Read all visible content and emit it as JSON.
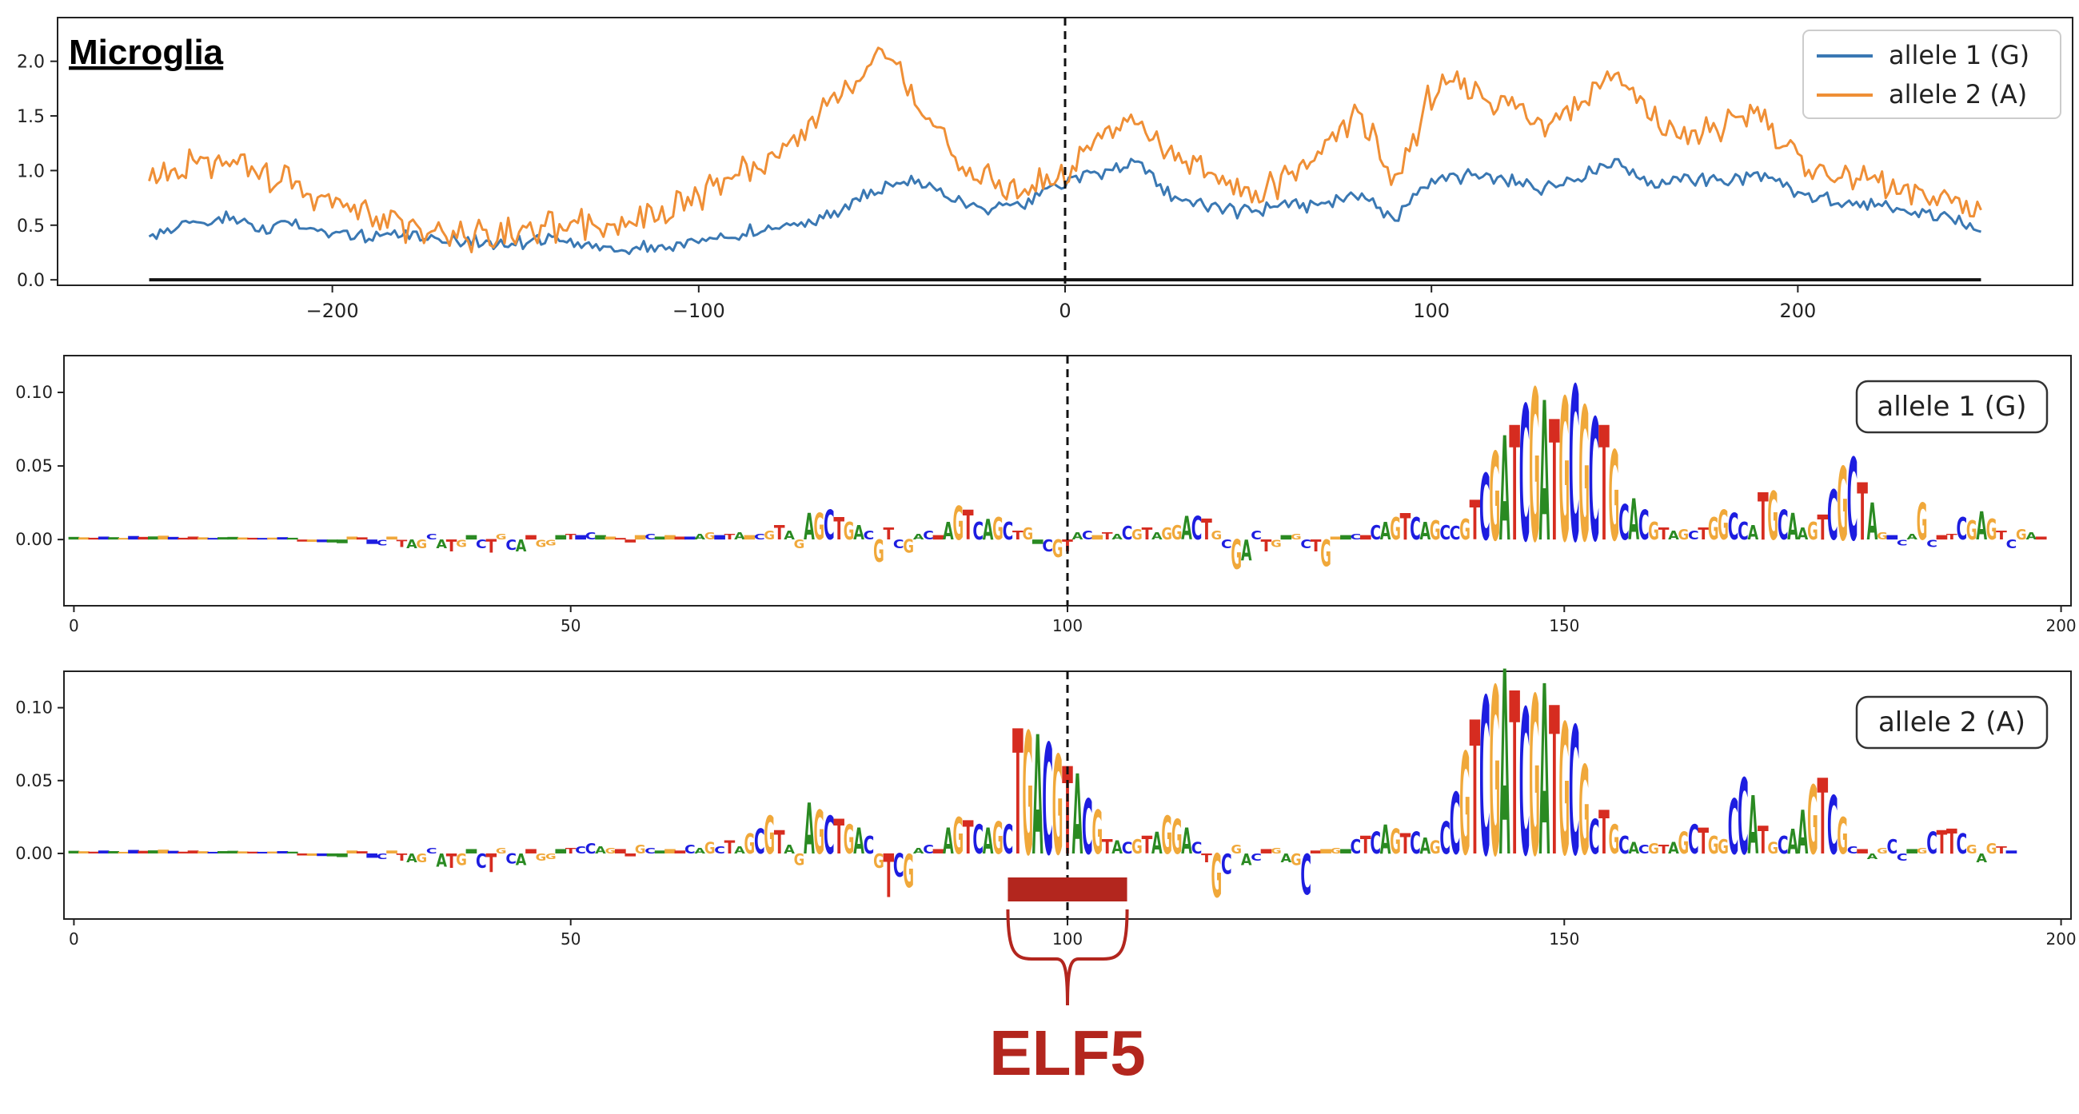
{
  "colors": {
    "allele1": "#3a78b3",
    "allele2": "#ef8f36",
    "A": "#2a8a22",
    "C": "#1d1de0",
    "G": "#f0a83a",
    "T": "#d62c20",
    "annotation": "#b3261e"
  },
  "panel_title": "Microglia",
  "annotation": {
    "label": "ELF5",
    "x_start": 94,
    "x_end": 106
  },
  "chart_data": [
    {
      "id": "profile",
      "type": "line",
      "title": "Microglia",
      "xlabel": "",
      "ylabel": "",
      "xlim": [
        -275,
        275
      ],
      "ylim": [
        -0.05,
        2.4
      ],
      "xticks": [
        -200,
        -100,
        0,
        100,
        200
      ],
      "xtick_labels": [
        "−200",
        "−100",
        "0",
        "100",
        "200"
      ],
      "yticks": [
        0.0,
        0.5,
        1.0,
        1.5,
        2.0
      ],
      "ytick_labels": [
        "0.0",
        "0.5",
        "1.0",
        "1.5",
        "2.0"
      ],
      "grid": false,
      "legend_position": "top-right",
      "baseline": 0,
      "vline": 0,
      "series": [
        {
          "name": "allele 1 (G)",
          "color": "#3a78b3",
          "x": [
            -250,
            -240,
            -230,
            -220,
            -210,
            -200,
            -190,
            -180,
            -170,
            -160,
            -150,
            -140,
            -130,
            -120,
            -110,
            -100,
            -90,
            -80,
            -70,
            -60,
            -50,
            -40,
            -30,
            -20,
            -10,
            0,
            10,
            20,
            30,
            40,
            50,
            60,
            70,
            80,
            90,
            100,
            110,
            120,
            130,
            140,
            150,
            160,
            170,
            180,
            190,
            200,
            210,
            220,
            230,
            240,
            250
          ],
          "y": [
            0.4,
            0.52,
            0.56,
            0.48,
            0.5,
            0.45,
            0.4,
            0.42,
            0.36,
            0.35,
            0.34,
            0.36,
            0.32,
            0.27,
            0.3,
            0.36,
            0.42,
            0.46,
            0.52,
            0.65,
            0.85,
            0.9,
            0.75,
            0.65,
            0.7,
            0.9,
            1.0,
            1.05,
            0.75,
            0.65,
            0.62,
            0.7,
            0.68,
            0.8,
            0.55,
            0.92,
            0.95,
            0.9,
            0.85,
            0.95,
            1.1,
            0.88,
            0.92,
            0.9,
            0.95,
            0.78,
            0.72,
            0.68,
            0.62,
            0.58,
            0.45
          ]
        },
        {
          "name": "allele 2 (A)",
          "color": "#ef8f36",
          "x": [
            -250,
            -240,
            -230,
            -220,
            -210,
            -200,
            -190,
            -180,
            -170,
            -160,
            -150,
            -140,
            -130,
            -120,
            -110,
            -100,
            -90,
            -80,
            -70,
            -60,
            -50,
            -40,
            -30,
            -20,
            -10,
            0,
            10,
            20,
            30,
            40,
            50,
            60,
            70,
            80,
            90,
            100,
            110,
            120,
            130,
            140,
            150,
            160,
            170,
            180,
            190,
            200,
            210,
            220,
            230,
            240,
            250
          ],
          "y": [
            0.9,
            1.05,
            1.1,
            1.0,
            0.85,
            0.7,
            0.58,
            0.5,
            0.42,
            0.4,
            0.44,
            0.48,
            0.52,
            0.5,
            0.6,
            0.75,
            0.92,
            1.1,
            1.4,
            1.75,
            2.1,
            1.6,
            1.1,
            0.9,
            0.85,
            1.0,
            1.3,
            1.45,
            1.15,
            0.95,
            0.75,
            0.9,
            1.15,
            1.55,
            0.85,
            1.7,
            1.8,
            1.6,
            1.45,
            1.6,
            1.9,
            1.45,
            1.3,
            1.4,
            1.55,
            1.1,
            0.95,
            0.9,
            0.8,
            0.75,
            0.65
          ]
        }
      ]
    },
    {
      "id": "logo1",
      "type": "bar",
      "label": "allele 1 (G)",
      "xlim": [
        -1,
        201
      ],
      "ylim": [
        -0.045,
        0.125
      ],
      "xticks": [
        0,
        50,
        100,
        150,
        200
      ],
      "xtick_labels": [
        "0",
        "50",
        "100",
        "150",
        "200"
      ],
      "yticks": [
        0.0,
        0.05,
        0.1
      ],
      "ytick_labels": [
        "0.00",
        "0.05",
        "0.10"
      ],
      "vline": 100,
      "bases": "AGTCAGCTAGCTTGCAAGTCGCATGCAAGTCCGTAGCATGACTGCATGGATCCAGTTGCAGTCAGCTAGCGTAGAGCTGACGTCGACTAGTCAGCTGACGTACGTACGTAGGACTGCGACTGAGCTGGACTCAGTCAGCCGTCGATCGATGCGCTGCACGTAGCTGGCCATGCAAGTCGCTAGCCAGCTTCGAGTCGATCGA",
      "values": [
        0.0018,
        0.0015,
        0.0012,
        0.002,
        0.0016,
        0.001,
        0.0024,
        0.0018,
        0.0021,
        0.0026,
        0.0018,
        0.0012,
        0.002,
        0.0015,
        0.001,
        0.0016,
        0.0018,
        0.0014,
        0.0012,
        0.001,
        0.0013,
        0.0016,
        0.0012,
        -0.0014,
        -0.0016,
        -0.0018,
        -0.002,
        -0.0025,
        0.002,
        0.0015,
        -0.003,
        -0.004,
        0.002,
        -0.005,
        -0.006,
        -0.006,
        0.004,
        -0.006,
        -0.008,
        -0.005,
        0.003,
        -0.006,
        -0.009,
        0.004,
        -0.007,
        -0.008,
        0.003,
        -0.005,
        -0.004,
        0.003,
        0.004,
        0.003,
        0.005,
        0.003,
        0.002,
        0.001,
        -0.002,
        0.003,
        0.004,
        0.002,
        0.003,
        0.002,
        0.002,
        0.004,
        0.005,
        0.003,
        0.004,
        0.005,
        0.003,
        0.004,
        0.006,
        0.01,
        0.006,
        -0.006,
        0.018,
        0.018,
        0.02,
        0.015,
        0.012,
        0.01,
        0.006,
        -0.015,
        0.008,
        -0.006,
        -0.009,
        0.004,
        0.006,
        0.003,
        0.012,
        0.023,
        0.02,
        0.012,
        0.014,
        0.015,
        0.012,
        0.006,
        0.008,
        -0.003,
        -0.008,
        -0.012,
        -0.008,
        0.005,
        0.006,
        0.003,
        0.005,
        0.004,
        0.009,
        0.007,
        0.008,
        0.005,
        0.008,
        0.01,
        0.016,
        0.016,
        0.014,
        0.006,
        -0.006,
        -0.02,
        -0.014,
        0.006,
        -0.008,
        -0.005,
        0.003,
        0.004,
        -0.006,
        -0.008,
        -0.018,
        0.002,
        0.003,
        0.004,
        0.003,
        0.01,
        0.012,
        0.015,
        0.018,
        0.015,
        0.012,
        0.013,
        0.01,
        0.009,
        0.014,
        0.027,
        0.045,
        0.06,
        0.071,
        0.078,
        0.092,
        0.103,
        0.095,
        0.082,
        0.097,
        0.105,
        0.091,
        0.083,
        0.078,
        0.061,
        0.024,
        0.028,
        0.02,
        0.012,
        0.008,
        0.006,
        0.007,
        0.006,
        0.008,
        0.015,
        0.02,
        0.018,
        0.012,
        0.01,
        0.032,
        0.033,
        0.02,
        0.018,
        0.008,
        0.012,
        0.017,
        0.034,
        0.05,
        0.056,
        0.039,
        0.025,
        0.005,
        0.003,
        -0.004,
        0.004,
        0.025,
        -0.005,
        0.003,
        0.004,
        0.015,
        0.013,
        0.019,
        0.014,
        0.006,
        -0.006,
        0.007,
        0.005,
        0.002
      ]
    },
    {
      "id": "logo2",
      "type": "bar",
      "label": "allele 2 (A)",
      "xlim": [
        -1,
        201
      ],
      "ylim": [
        -0.045,
        0.125
      ],
      "xticks": [
        0,
        50,
        100,
        150,
        200
      ],
      "xtick_labels": [
        "0",
        "50",
        "100",
        "150",
        "200"
      ],
      "yticks": [
        0.0,
        0.05,
        0.1
      ],
      "ytick_labels": [
        "0.00",
        "0.05",
        "0.10"
      ],
      "vline": 100,
      "bases": "AGTCAGCTAGCTTGCAAGTCGCATGCAAGTCCGTAGCATGACTGCATGGATCCAGTTGCAGTCAGCTAGCGTAGAGCTGACGTCGACTAGTCAGCTGACGTACGTACGTAGGACTGCGACTGAGCTGGACTCAGTCAGCCGTCGATCGATGCGCTGCACGTAGCTGGCCATGCAAGTCGCTAGCCAGCTTCGAGTCGATCGA",
      "values": [
        0.0018,
        0.0015,
        0.0012,
        0.002,
        0.0016,
        0.001,
        0.0024,
        0.0018,
        0.0021,
        0.0026,
        0.0018,
        0.0012,
        0.002,
        0.0015,
        0.001,
        0.0016,
        0.0018,
        0.0014,
        0.0012,
        0.001,
        0.0013,
        0.0016,
        0.0012,
        -0.0014,
        -0.0016,
        -0.0018,
        -0.002,
        -0.0025,
        0.002,
        0.0015,
        -0.003,
        -0.004,
        0.002,
        -0.005,
        -0.006,
        -0.006,
        0.004,
        -0.009,
        -0.01,
        -0.008,
        0.003,
        -0.01,
        -0.013,
        0.004,
        -0.007,
        -0.008,
        0.003,
        -0.005,
        -0.004,
        0.003,
        0.004,
        0.005,
        0.007,
        0.005,
        0.004,
        0.003,
        -0.002,
        0.006,
        0.004,
        0.002,
        0.003,
        0.002,
        0.006,
        0.004,
        0.008,
        0.005,
        0.009,
        0.005,
        0.014,
        0.017,
        0.026,
        0.016,
        0.006,
        -0.008,
        0.035,
        0.03,
        0.026,
        0.024,
        0.02,
        0.018,
        0.012,
        -0.01,
        -0.03,
        -0.016,
        -0.023,
        0.004,
        0.006,
        0.003,
        0.018,
        0.025,
        0.023,
        0.02,
        0.018,
        0.022,
        0.02,
        0.086,
        0.084,
        0.082,
        0.076,
        0.068,
        0.06,
        0.055,
        0.038,
        0.03,
        0.01,
        0.009,
        0.008,
        0.01,
        0.012,
        0.015,
        0.026,
        0.024,
        0.018,
        0.008,
        -0.006,
        -0.03,
        -0.014,
        0.006,
        -0.008,
        -0.005,
        0.003,
        0.004,
        -0.006,
        -0.008,
        -0.028,
        0.002,
        0.003,
        0.004,
        0.003,
        0.01,
        0.012,
        0.015,
        0.02,
        0.017,
        0.014,
        0.015,
        0.011,
        0.009,
        0.022,
        0.042,
        0.07,
        0.092,
        0.108,
        0.115,
        0.127,
        0.112,
        0.1,
        0.109,
        0.117,
        0.102,
        0.09,
        0.088,
        0.061,
        0.024,
        0.03,
        0.02,
        0.012,
        0.008,
        0.006,
        0.007,
        0.006,
        0.008,
        0.015,
        0.02,
        0.018,
        0.012,
        0.01,
        0.038,
        0.052,
        0.04,
        0.019,
        0.008,
        0.012,
        0.017,
        0.03,
        0.047,
        0.052,
        0.04,
        0.025,
        0.005,
        0.003,
        -0.004,
        0.004,
        0.01,
        -0.005,
        0.003,
        0.004,
        0.015,
        0.016,
        0.017,
        0.014,
        0.006,
        -0.006,
        0.007,
        0.005,
        0.002
      ]
    }
  ]
}
